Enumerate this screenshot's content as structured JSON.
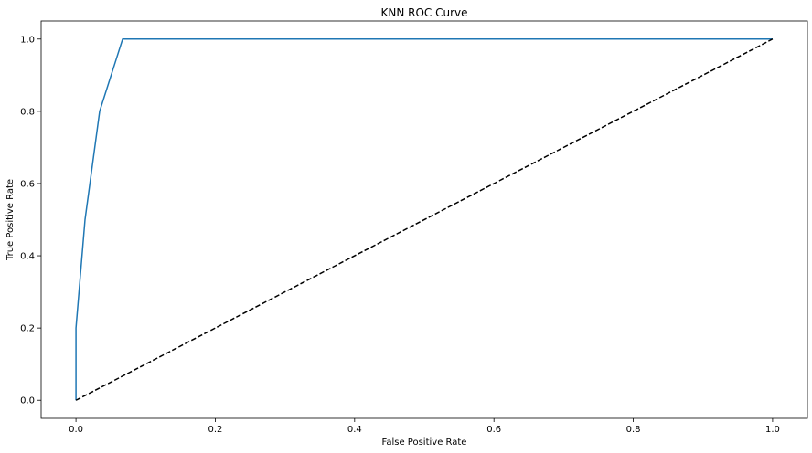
{
  "chart_data": {
    "type": "line",
    "title": "KNN ROC Curve",
    "xlabel": "False Positive Rate",
    "ylabel": "True Positive Rate",
    "xlim": [
      -0.05,
      1.05
    ],
    "ylim": [
      -0.05,
      1.05
    ],
    "xticks": [
      "0.0",
      "0.2",
      "0.4",
      "0.6",
      "0.8",
      "1.0"
    ],
    "yticks": [
      "0.0",
      "0.2",
      "0.4",
      "0.6",
      "0.8",
      "1.0"
    ],
    "grid": false,
    "series": [
      {
        "color": "#1f77b4",
        "style": "solid",
        "x": [
          0.0,
          0.0,
          0.013,
          0.034,
          0.067,
          1.0
        ],
        "y": [
          0.0,
          0.2,
          0.5,
          0.8,
          1.0,
          1.0
        ]
      },
      {
        "color": "#000000",
        "style": "dashed",
        "x": [
          0.0,
          1.0
        ],
        "y": [
          0.0,
          1.0
        ]
      }
    ]
  }
}
